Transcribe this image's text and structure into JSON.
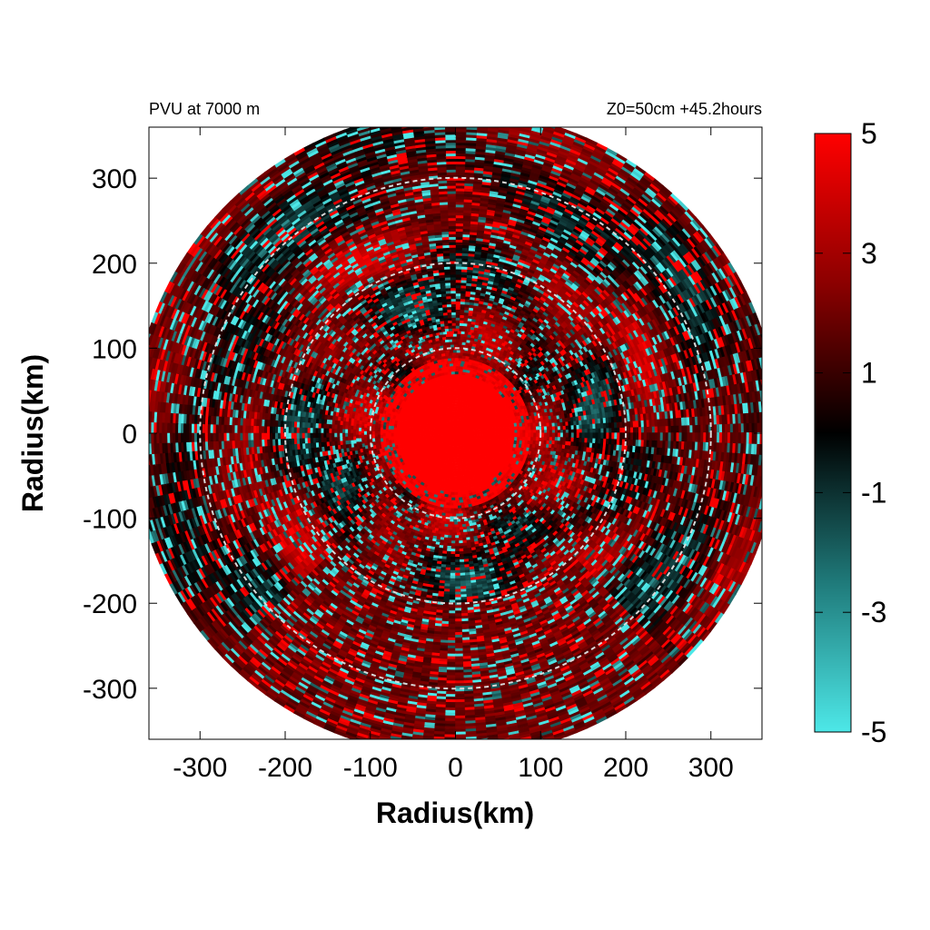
{
  "chart_data": {
    "type": "heatmap",
    "title_left": "PVU at  7000 m",
    "title_right": "Z0=50cm  +45.2hours",
    "xlabel": "Radius(km)",
    "ylabel": "Radius(km)",
    "xlim": [
      -360,
      360
    ],
    "ylim": [
      -360,
      360
    ],
    "x_ticks": [
      -300,
      -200,
      -100,
      0,
      100,
      200,
      300
    ],
    "y_ticks": [
      300,
      200,
      100,
      0,
      -100,
      -200,
      -300
    ],
    "domain_radius_km": 380,
    "reference_circles_km": [
      100,
      200,
      300
    ],
    "colorbar": {
      "range": [
        -5,
        5
      ],
      "tick_values": [
        5,
        3,
        1,
        -1,
        -3,
        -5
      ],
      "tick_labels": [
        "5",
        "3",
        "1",
        "-1",
        "-3",
        "-5"
      ],
      "colors": {
        "max": "#ff0000",
        "mid": "#000000",
        "min": "#4de8e8"
      }
    },
    "features": {
      "core": "intense positive PV (>5 PVU) within ~80 km of center",
      "rings": "alternating positive and negative PV bands at larger radii"
    }
  }
}
